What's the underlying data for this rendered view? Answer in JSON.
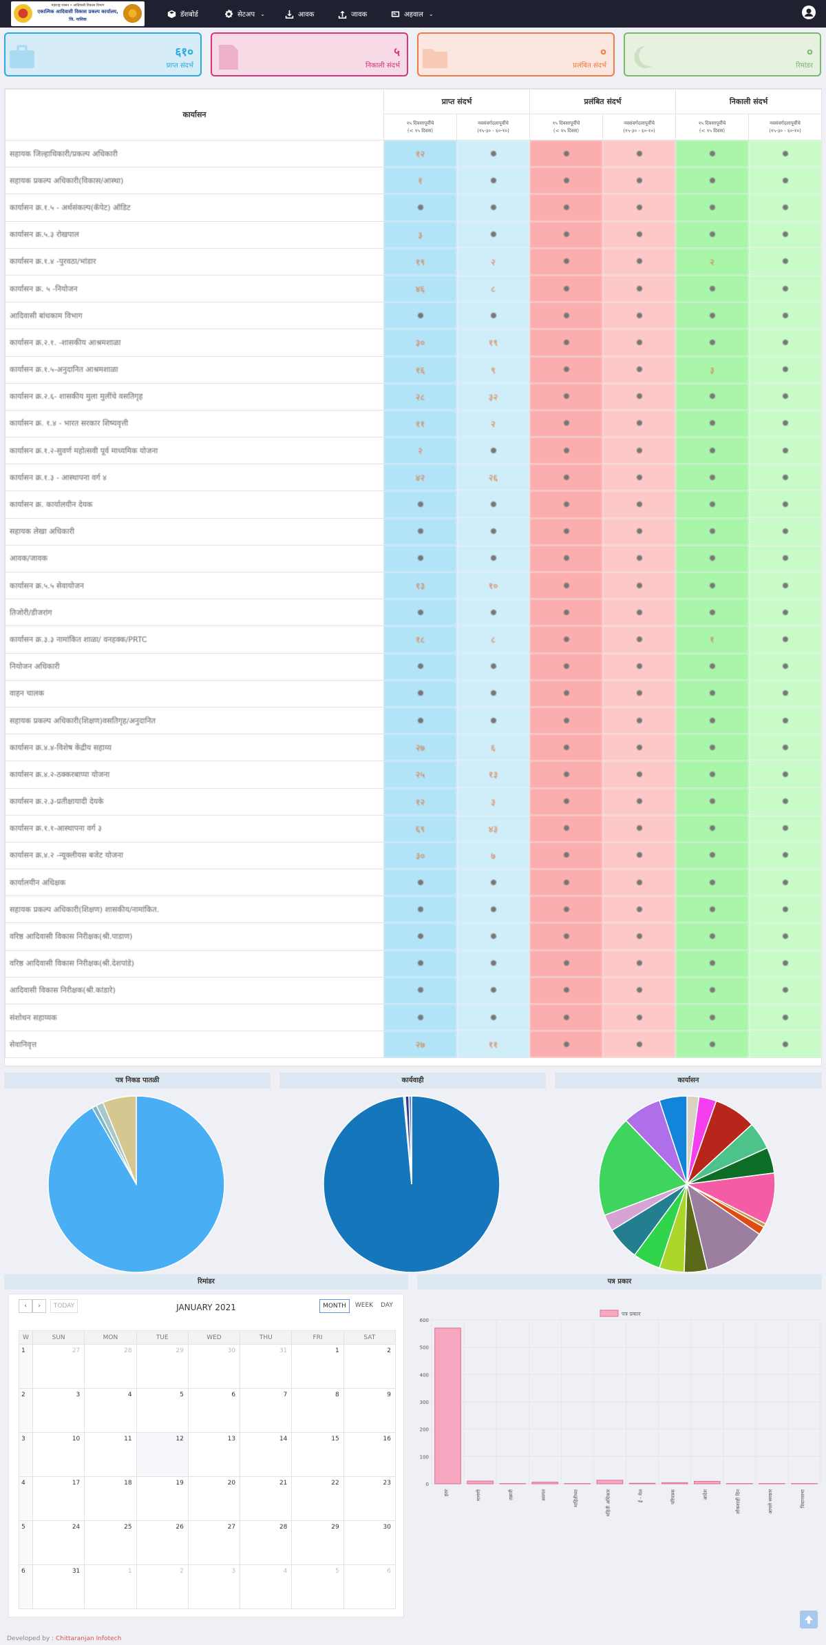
{
  "header": {
    "logo_line1": "महाराष्ट्र शासन • आदिवासी विकास विभाग",
    "logo_line2": "एकात्मिक आदिवासी विकास प्रकल्प कार्यालय,",
    "logo_line3": "जि. नाशिक",
    "nav": [
      {
        "label": "डॅशबोर्ड",
        "icon": "dashboard-icon"
      },
      {
        "label": "सेटअप",
        "icon": "gear-icon",
        "dropdown": true
      },
      {
        "label": "आवक",
        "icon": "download-icon"
      },
      {
        "label": "जावक",
        "icon": "upload-icon"
      },
      {
        "label": "अहवाल",
        "icon": "report-icon",
        "dropdown": true
      }
    ]
  },
  "cards": [
    {
      "value": "६१०",
      "label": "प्राप्त संदर्भ",
      "color": "#2aa8e0",
      "bg": "#d6ecf7"
    },
    {
      "value": "५",
      "label": "निकाली संदर्भ",
      "color": "#d8347c",
      "bg": "#f6dbe7"
    },
    {
      "value": "०",
      "label": "प्रलंबित संदर्भ",
      "color": "#f07b43",
      "bg": "#fbe7df"
    },
    {
      "value": "०",
      "label": "रिमांडर",
      "color": "#7ab86a",
      "bg": "#e6f1e0"
    }
  ],
  "table": {
    "office_header": "कार्यासन",
    "groups": [
      "प्राप्त संदर्भ",
      "प्रलंबित संदर्भ",
      "निकाली संदर्भ"
    ],
    "sub_a": "१५ दिवसापूर्वीचे",
    "sub_a2": "(< १५ दिवस)",
    "sub_b": "नवसंवर्गदलापूर्वीचे",
    "sub_b2": "(१५-३० - ६०-१०)",
    "rows": [
      {
        "name": "सहायक जिल्हाधिकारी/प्रकल्प अधिकारी",
        "a": "१२",
        "b": "",
        "f": ""
      },
      {
        "name": "सहायक प्रकल्प अधिकारी(विकास/आस्था)",
        "a": "१",
        "b": "",
        "f": ""
      },
      {
        "name": "कार्यासन क्र.१.५ - अर्थसंकल्प(कॅपेट) ऑडिट",
        "a": "",
        "b": "",
        "f": ""
      },
      {
        "name": "कार्यासन क्र.५.३ रोखपाल",
        "a": "३",
        "b": "",
        "f": ""
      },
      {
        "name": "कार्यासन क्र.१.४ -पुरवठा/भांडार",
        "a": "१९",
        "b": "२",
        "f": "२"
      },
      {
        "name": "कार्यासन क्र. ५ -नियोजन",
        "a": "४६",
        "b": "८",
        "f": ""
      },
      {
        "name": "आदिवासी बांधकाम विभाग",
        "a": "",
        "b": "",
        "f": ""
      },
      {
        "name": "कार्यासन क्र.२.१. -शासकीय आश्रमशाळा",
        "a": "३०",
        "b": "१९",
        "f": ""
      },
      {
        "name": "कार्यासन क्र.१.५-अनुदानित आश्रमशाळा",
        "a": "१६",
        "b": "९",
        "f": "३"
      },
      {
        "name": "कार्यासन क्र.२.६- शासकीय मुला मुलींचे वसतिगृह",
        "a": "२८",
        "b": "३२",
        "f": ""
      },
      {
        "name": "कार्यासन क्र. १.४ - भारत सरकार शिष्यवृत्ती",
        "a": "११",
        "b": "२",
        "f": ""
      },
      {
        "name": "कार्यासन क्र.१.२-सुवर्ण महोत्सवी पूर्व माध्यमिक योजना",
        "a": "२",
        "b": "",
        "f": ""
      },
      {
        "name": "कार्यासन क्र.१.३ - आस्थापना वर्ग ४",
        "a": "४२",
        "b": "२६",
        "f": ""
      },
      {
        "name": "कार्यासन क्र. कार्यालयीन देयक",
        "a": "",
        "b": "",
        "f": ""
      },
      {
        "name": "सहायक लेखा अधिकारी",
        "a": "",
        "b": "",
        "f": ""
      },
      {
        "name": "आवक/जावक",
        "a": "",
        "b": "",
        "f": ""
      },
      {
        "name": "कार्यासन क्र.५.५ सेवायोजन",
        "a": "१३",
        "b": "१०",
        "f": ""
      },
      {
        "name": "तिजोरी/डीजरांग",
        "a": "",
        "b": "",
        "f": ""
      },
      {
        "name": "कार्यासन क्र.३.३ नामांकित शाळा/ वनहक्क/PRTC",
        "a": "१८",
        "b": "८",
        "f": "१"
      },
      {
        "name": "नियोजन अधिकारी",
        "a": "",
        "b": "",
        "f": ""
      },
      {
        "name": "वाहन चालक",
        "a": "",
        "b": "",
        "f": ""
      },
      {
        "name": "सहायक प्रकल्प अधिकारी(शिक्षण)वसतिगृह/अनुदानित",
        "a": "",
        "b": "",
        "f": ""
      },
      {
        "name": "कार्यासन क्र.४.४-विशेष केंद्रीय सहाय्य",
        "a": "२७",
        "b": "६",
        "f": ""
      },
      {
        "name": "कार्यासन क्र.४.२-ठक्करबाप्पा योजना",
        "a": "२५",
        "b": "१३",
        "f": ""
      },
      {
        "name": "कार्यासन क्र.२.३-प्रतीक्षायादी देयके",
        "a": "१२",
        "b": "३",
        "f": ""
      },
      {
        "name": "कार्यासन क्र.१.१-आस्थापना वर्ग ३",
        "a": "६९",
        "b": "४३",
        "f": ""
      },
      {
        "name": "कार्यासन क्र.४.२ -न्यूक्लीयस बजेट योजना",
        "a": "३०",
        "b": "७",
        "f": ""
      },
      {
        "name": "कार्यालयीन अधिक्षक",
        "a": "",
        "b": "",
        "f": ""
      },
      {
        "name": "सहायक प्रकल्प अधिकारी(शिक्षण) शासकीय/नामांकित.",
        "a": "",
        "b": "",
        "f": ""
      },
      {
        "name": "वरिष्ठ आदिवासी विकास निरीक्षक(श्री.पाडाण)",
        "a": "",
        "b": "",
        "f": ""
      },
      {
        "name": "वरिष्ठ आदिवासी विकास निरीक्षक(श्री.देशपांडे)",
        "a": "",
        "b": "",
        "f": ""
      },
      {
        "name": "आदिवासी विकास निरीक्षक(श्री.कांडारे)",
        "a": "",
        "b": "",
        "f": ""
      },
      {
        "name": "संशोधन सहाय्यक",
        "a": "",
        "b": "",
        "f": ""
      },
      {
        "name": "सेवानिवृत्त",
        "a": "२७",
        "b": "११",
        "f": ""
      }
    ]
  },
  "pies": [
    {
      "title": "पत्र निकड पातळी",
      "slices": [
        {
          "value": 550,
          "color": "#4aaef5"
        },
        {
          "value": 5,
          "color": "#79b7c7"
        },
        {
          "value": 8,
          "color": "#a6c8c8"
        },
        {
          "value": 37,
          "color": "#d6c790"
        }
      ]
    },
    {
      "title": "कार्यवाही",
      "slices": [
        {
          "value": 600,
          "color": "#1676bc"
        },
        {
          "value": 2,
          "color": "#ddd"
        },
        {
          "value": 4,
          "color": "#2b3a8e"
        },
        {
          "value": 3,
          "color": "#6e7fd0"
        }
      ]
    },
    {
      "title": "कार्यासन",
      "slices": [
        {
          "value": 13,
          "color": "#d9d2c2"
        },
        {
          "value": 19,
          "color": "#f43ff0"
        },
        {
          "value": 46,
          "color": "#b8251a"
        },
        {
          "value": 30,
          "color": "#4dc28a"
        },
        {
          "value": 28,
          "color": "#0d6d27"
        },
        {
          "value": 56,
          "color": "#f45ca5"
        },
        {
          "value": 4,
          "color": "#c89a4a"
        },
        {
          "value": 9,
          "color": "#de4c12"
        },
        {
          "value": 69,
          "color": "#9c7ea0"
        },
        {
          "value": 25,
          "color": "#5b6a18"
        },
        {
          "value": 27,
          "color": "#acd62a"
        },
        {
          "value": 30,
          "color": "#2fd44a"
        },
        {
          "value": 36,
          "color": "#237e90"
        },
        {
          "value": 18,
          "color": "#d5a4d5"
        },
        {
          "value": 110,
          "color": "#3fd45e"
        },
        {
          "value": 42,
          "color": "#af6fe8"
        },
        {
          "value": 30,
          "color": "#1285db"
        }
      ]
    }
  ],
  "calendar": {
    "section_title": "रिमांडर",
    "prev_icon": "chevron-left-icon",
    "next_icon": "chevron-right-icon",
    "today_label": "TODAY",
    "title": "JANUARY 2021",
    "views": [
      "MONTH",
      "WEEK",
      "DAY"
    ],
    "active_view": "MONTH",
    "week_header": "W",
    "weekdays": [
      "SUN",
      "MON",
      "TUE",
      "WED",
      "THU",
      "FRI",
      "SAT"
    ],
    "weeks": [
      {
        "w": "1",
        "days": [
          "27",
          "28",
          "29",
          "30",
          "31",
          "1",
          "2"
        ]
      },
      {
        "w": "2",
        "days": [
          "3",
          "4",
          "5",
          "6",
          "7",
          "8",
          "9"
        ]
      },
      {
        "w": "3",
        "days": [
          "10",
          "11",
          "12",
          "13",
          "14",
          "15",
          "16"
        ]
      },
      {
        "w": "4",
        "days": [
          "17",
          "18",
          "19",
          "20",
          "21",
          "22",
          "23"
        ]
      },
      {
        "w": "5",
        "days": [
          "24",
          "25",
          "26",
          "27",
          "28",
          "29",
          "30"
        ]
      },
      {
        "w": "6",
        "days": [
          "31",
          "1",
          "2",
          "3",
          "4",
          "5",
          "6"
        ]
      }
    ]
  },
  "chart_data": {
    "type": "bar",
    "title": "पत्र प्रकार",
    "series": [
      {
        "name": "पत्र प्रकार",
        "color": "#f7a8c0",
        "values": [
          570,
          10,
          1,
          6,
          1,
          13,
          2,
          4,
          9,
          1,
          1,
          1
        ]
      }
    ],
    "categories": [
      "इतर",
      "मागणी",
      "तक्रारी",
      "अवगत",
      "माहितीच्या",
      "महिती अधिकार",
      "ई - मेल",
      "परिपत्रक",
      "आदेश",
      "लोकशाही दिन",
      "आपले सरकार",
      "विधानसभा"
    ],
    "ylim": [
      0,
      600
    ],
    "yticks": [
      0,
      100,
      200,
      300,
      400,
      500,
      600
    ],
    "legend": "top"
  },
  "footer": {
    "prefix": "Developed by : ",
    "company": "Chittaranjan Infotech"
  }
}
